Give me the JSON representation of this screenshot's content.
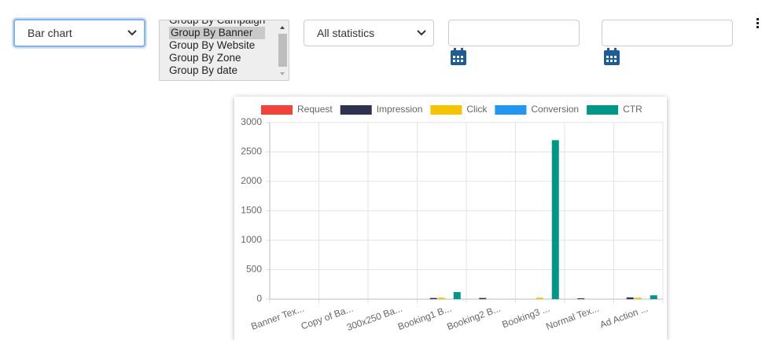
{
  "controls": {
    "chart_type": "Bar chart",
    "group_by_options": [
      "Group By Campaign",
      "Group By Banner",
      "Group By Website",
      "Group By Zone",
      "Group By date"
    ],
    "statistics": "All statistics"
  },
  "chart_data": {
    "type": "bar",
    "categories": [
      "Banner Tex...",
      "Copy of Ba...",
      "300x250 Ba...",
      "Booking1 B...",
      "Booking2 B...",
      "Booking3 ...",
      "Normal Tex...",
      "Ad Action ..."
    ],
    "series": [
      {
        "name": "Request",
        "color": "#f0433a",
        "values": [
          0,
          0,
          0,
          0,
          0,
          0,
          0,
          0
        ]
      },
      {
        "name": "Impression",
        "color": "#2d3250",
        "values": [
          0,
          0,
          0,
          20,
          20,
          0,
          15,
          30
        ]
      },
      {
        "name": "Click",
        "color": "#f5c400",
        "values": [
          0,
          0,
          0,
          25,
          0,
          25,
          0,
          25
        ]
      },
      {
        "name": "Conversion",
        "color": "#2196f3",
        "values": [
          0,
          0,
          0,
          0,
          0,
          0,
          0,
          0
        ]
      },
      {
        "name": "CTR",
        "color": "#009688",
        "values": [
          0,
          0,
          0,
          120,
          0,
          2700,
          0,
          65
        ]
      }
    ],
    "ylim": [
      0,
      3000
    ],
    "yticks": [
      0,
      500,
      1000,
      1500,
      2000,
      2500,
      3000
    ],
    "grid": true,
    "legend": "top"
  }
}
